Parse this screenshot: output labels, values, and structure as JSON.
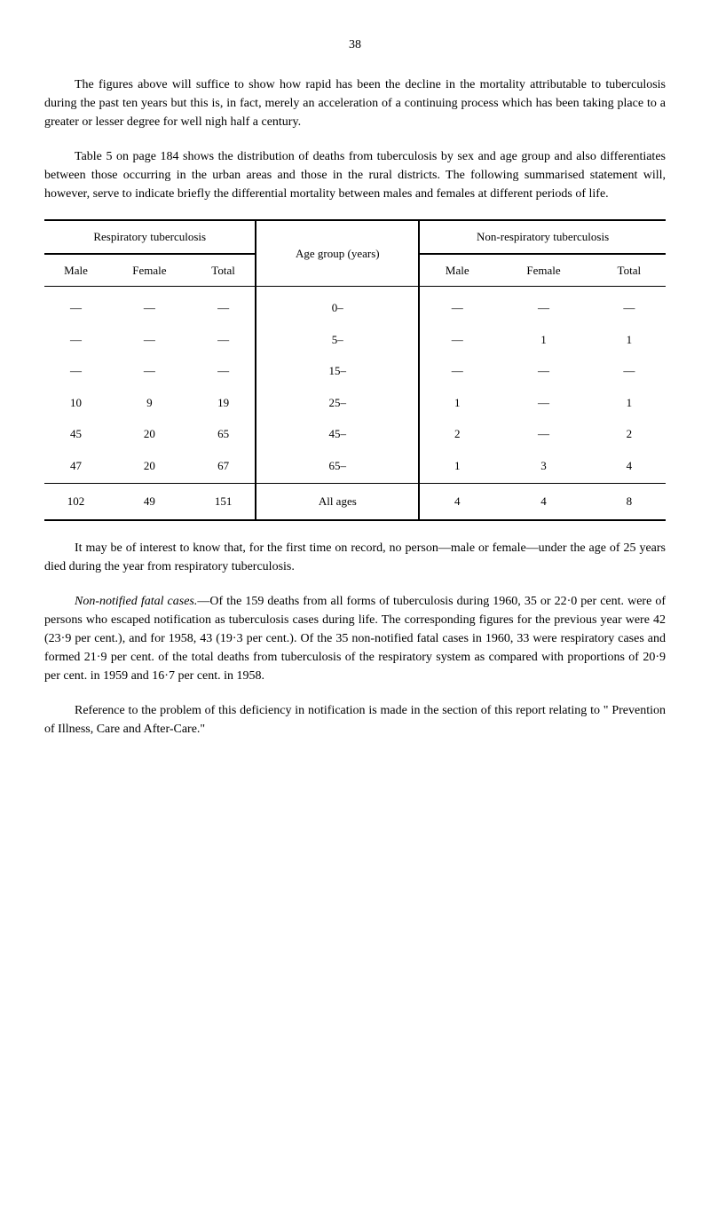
{
  "page_number": "38",
  "paragraphs": {
    "p1": "The figures above will suffice to show how rapid has been the decline in the mortality attributable to tuberculosis during the past ten years but this is, in fact, merely an acceleration of a continuing process which has been taking place to a greater or lesser degree for well nigh half a century.",
    "p2": "Table 5 on page 184 shows the distribution of deaths from tuberculosis by sex and age group and also differentiates between those occurring in the urban areas and those in the rural districts. The following summarised statement will, however, serve to indicate briefly the differential mortality between males and females at different periods of life.",
    "p3": "It may be of interest to know that, for the first time on record, no person—male or female—under the age of 25 years died during the year from respiratory tuberculosis.",
    "p4_prefix": "Non-notified fatal cases.",
    "p4": "—Of the 159 deaths from all forms of tuberculosis during 1960, 35 or 22·0 per cent. were of persons who escaped notification as tuberculosis cases during life. The corresponding figures for the previous year were 42 (23·9 per cent.), and for 1958, 43 (19·3 per cent.). Of the 35 non-notified fatal cases in 1960, 33 were respiratory cases and formed 21·9 per cent. of the total deaths from tuberculosis of the respiratory system as compared with proportions of 20·9 per cent. in 1959 and 16·7 per cent. in 1958.",
    "p5": "Reference to the problem of this deficiency in notification is made in the section of this report relating to \" Prevention of Illness, Care and After-Care.\""
  },
  "table": {
    "headers": {
      "respiratory": "Respiratory tuberculosis",
      "age": "Age group (years)",
      "non_respiratory": "Non-respiratory tuberculosis",
      "male": "Male",
      "female": "Female",
      "total": "Total"
    },
    "rows": [
      {
        "r_male": "—",
        "r_female": "—",
        "r_total": "—",
        "age": "0–",
        "n_male": "—",
        "n_female": "—",
        "n_total": "—"
      },
      {
        "r_male": "—",
        "r_female": "—",
        "r_total": "—",
        "age": "5–",
        "n_male": "—",
        "n_female": "1",
        "n_total": "1"
      },
      {
        "r_male": "—",
        "r_female": "—",
        "r_total": "—",
        "age": "15–",
        "n_male": "—",
        "n_female": "—",
        "n_total": "—"
      },
      {
        "r_male": "10",
        "r_female": "9",
        "r_total": "19",
        "age": "25–",
        "n_male": "1",
        "n_female": "—",
        "n_total": "1"
      },
      {
        "r_male": "45",
        "r_female": "20",
        "r_total": "65",
        "age": "45–",
        "n_male": "2",
        "n_female": "—",
        "n_total": "2"
      },
      {
        "r_male": "47",
        "r_female": "20",
        "r_total": "67",
        "age": "65–",
        "n_male": "1",
        "n_female": "3",
        "n_total": "4"
      }
    ],
    "totals": {
      "r_male": "102",
      "r_female": "49",
      "r_total": "151",
      "age": "All ages",
      "n_male": "4",
      "n_female": "4",
      "n_total": "8"
    }
  }
}
